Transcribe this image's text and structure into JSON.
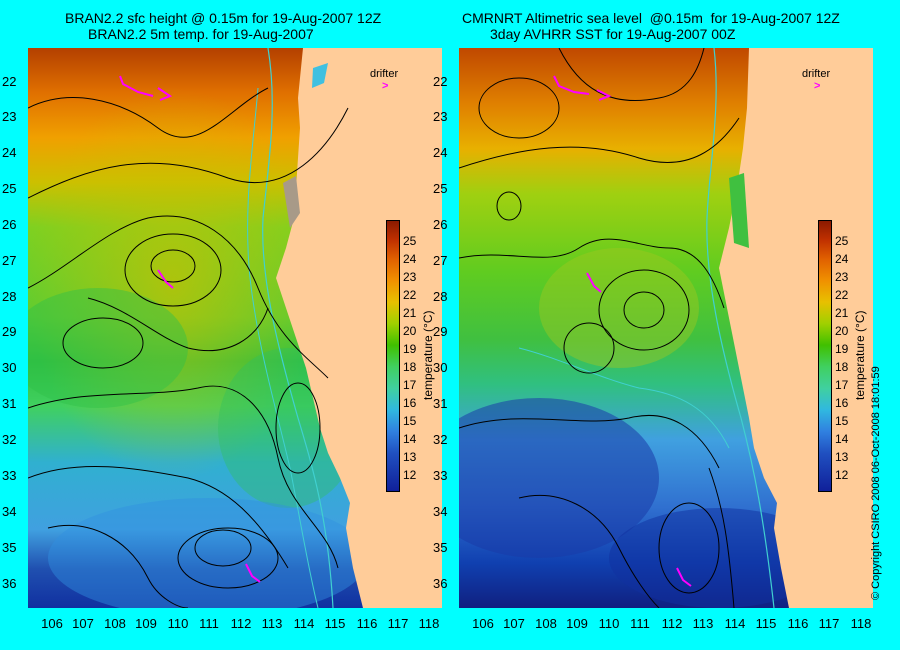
{
  "left_panel": {
    "title_line1": "BRAN2.2 sfc height @ 0.15m for 19-Aug-2007 12Z",
    "title_line2": "BRAN2.2 5m temp. for 19-Aug-2007",
    "drifter_label": "drifter"
  },
  "right_panel": {
    "title_line1": "CMRNRT Altimetric sea level  @0.15m  for 19-Aug-2007 12Z",
    "title_line2": "3day AVHRR SST for 19-Aug-2007 00Z",
    "drifter_label": "drifter"
  },
  "axes": {
    "y_ticks": [
      "22",
      "23",
      "24",
      "25",
      "26",
      "27",
      "28",
      "29",
      "30",
      "31",
      "32",
      "33",
      "34",
      "35",
      "36"
    ],
    "x_ticks": [
      "106",
      "107",
      "108",
      "109",
      "110",
      "111",
      "112",
      "113",
      "114",
      "115",
      "116",
      "117",
      "118"
    ]
  },
  "colorbar": {
    "label": "temperature (°C)",
    "ticks": [
      "25",
      "24",
      "23",
      "22",
      "21",
      "20",
      "19",
      "18",
      "17",
      "16",
      "15",
      "14",
      "13",
      "12"
    ]
  },
  "copyright": "© Copyright CSIRO 2008   06-Oct-2008 18:01:59",
  "colors": {
    "background": "#00ffff",
    "land": "#ffcc99",
    "drifter": "#ff00ff",
    "contour": "#000000",
    "coastline": "#40d0d0"
  }
}
